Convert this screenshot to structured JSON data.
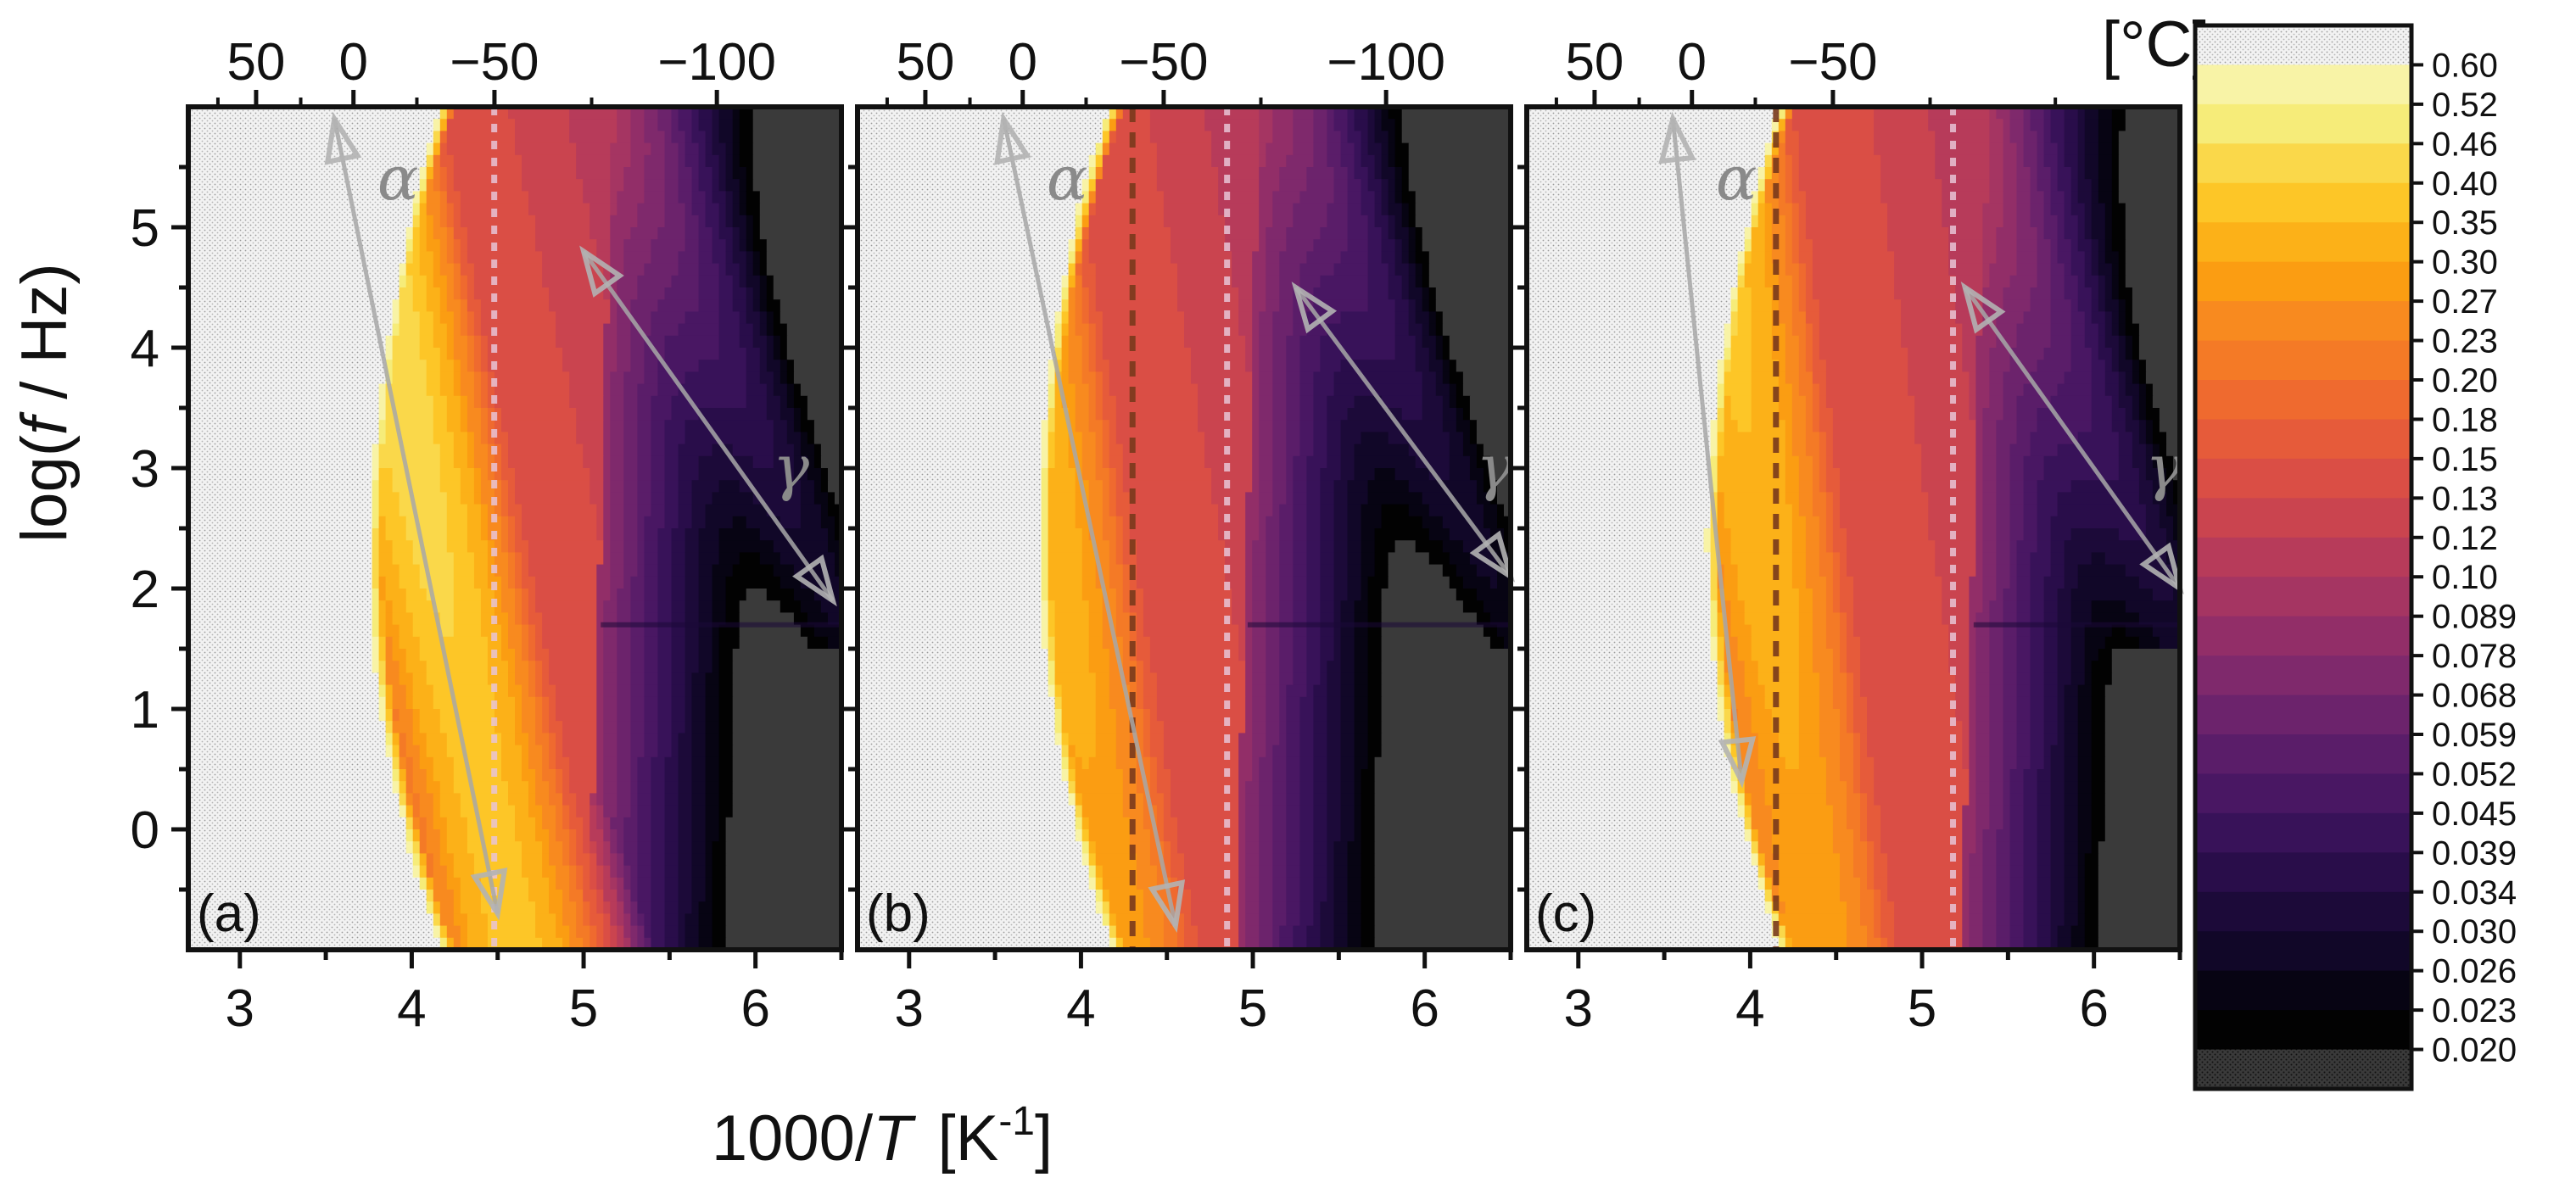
{
  "chart_data": {
    "type": "heatmap",
    "description_units": {
      "x": "1000/T [K^-1]",
      "y": "log(f / Hz)",
      "top_axis": "T [°C]"
    },
    "xlabel_main": "1000/",
    "xlabel_T": "T",
    "xlabel_unit": "[K",
    "xlabel_exp": "-1",
    "xlabel_close": "]",
    "ylabel_pre": "log(",
    "ylabel_f": "f",
    "ylabel_post": " / Hz)",
    "top_unit_label": "[°C]",
    "xlim": [
      2.7,
      6.5
    ],
    "ylim": [
      -1.0,
      6.0
    ],
    "x_ticks": [
      3,
      4,
      5,
      6
    ],
    "x_tick_labels": [
      "3",
      "4",
      "5",
      "6"
    ],
    "y_ticks": [
      0,
      1,
      2,
      3,
      4,
      5
    ],
    "y_tick_labels": [
      "0",
      "1",
      "2",
      "3",
      "4",
      "5"
    ],
    "panels": [
      {
        "label": "(a)",
        "top_ticks_celsius": [
          50,
          0,
          -50,
          -100
        ],
        "top_tick_labels": [
          "50",
          "0",
          "−50",
          "−100"
        ],
        "ridge_intercept": 4.46,
        "ridge_slope": -0.15,
        "edge_intercept": 3.95,
        "edge_slope": -0.175,
        "edge_curv": 0.035,
        "glass_x": 5.05,
        "alpha_arrow": {
          "x1": 3.55,
          "y1": 5.9,
          "x2": 4.5,
          "y2": -0.7
        },
        "gamma_arrow": {
          "x1": 5.0,
          "y1": 4.8,
          "x2": 6.45,
          "y2": 1.9
        },
        "vlines": [
          {
            "x": 4.48,
            "style": "white-dotted"
          }
        ],
        "alpha_label": "α",
        "gamma_label": "γ",
        "alpha_label_x": 3.8,
        "alpha_label_y": 5.4,
        "gamma_label_x": 6.1,
        "gamma_label_y": 3.0
      },
      {
        "label": "(b)",
        "top_ticks_celsius": [
          50,
          0,
          -50,
          -100
        ],
        "top_tick_labels": [
          "50",
          "0",
          "−50",
          "−100"
        ],
        "ridge_intercept": 4.1,
        "ridge_slope": -0.12,
        "edge_intercept": 3.95,
        "edge_slope": -0.175,
        "edge_curv": 0.035,
        "glass_x": 4.92,
        "alpha_arrow": {
          "x1": 3.55,
          "y1": 5.9,
          "x2": 4.55,
          "y2": -0.8
        },
        "gamma_arrow": {
          "x1": 5.25,
          "y1": 4.5,
          "x2": 6.5,
          "y2": 2.1
        },
        "vlines": [
          {
            "x": 4.3,
            "style": "dark-dashed"
          },
          {
            "x": 4.85,
            "style": "white-dotted"
          }
        ],
        "alpha_label": "α",
        "gamma_label": "γ",
        "alpha_label_x": 3.8,
        "alpha_label_y": 5.4,
        "gamma_label_x": 6.3,
        "gamma_label_y": 3.0
      },
      {
        "label": "(c)",
        "top_ticks_celsius": [
          50,
          0,
          -50
        ],
        "top_tick_labels": [
          "50",
          "0",
          "−50"
        ],
        "ridge_intercept": 4.3,
        "ridge_slope": -0.1,
        "edge_intercept": 3.95,
        "edge_slope": -0.175,
        "edge_curv": 0.035,
        "glass_x": 5.25,
        "alpha_arrow": {
          "x1": 3.55,
          "y1": 5.9,
          "x2": 3.95,
          "y2": 0.4
        },
        "gamma_arrow": {
          "x1": 5.25,
          "y1": 4.5,
          "x2": 6.5,
          "y2": 2.0
        },
        "vlines": [
          {
            "x": 4.15,
            "style": "dark-dashed"
          },
          {
            "x": 5.18,
            "style": "white-dotted"
          }
        ],
        "alpha_label": "α",
        "gamma_label": "γ",
        "alpha_label_x": 3.8,
        "alpha_label_y": 5.4,
        "gamma_label_x": 6.3,
        "gamma_label_y": 3.0
      }
    ],
    "colorbar": {
      "labels": [
        "0.60",
        "0.52",
        "0.46",
        "0.40",
        "0.35",
        "0.30",
        "0.27",
        "0.23",
        "0.20",
        "0.18",
        "0.15",
        "0.13",
        "0.12",
        "0.10",
        "0.089",
        "0.078",
        "0.068",
        "0.059",
        "0.052",
        "0.045",
        "0.039",
        "0.034",
        "0.030",
        "0.026",
        "0.023",
        "0.020"
      ],
      "colors": [
        "#f7f6e8",
        "#f8f3a6",
        "#f6ec79",
        "#fad84a",
        "#fdc627",
        "#fcb118",
        "#fb9d12",
        "#f88a1f",
        "#f47a26",
        "#ef6a2f",
        "#e65b3a",
        "#da4e45",
        "#ca444f",
        "#b73b5a",
        "#a53562",
        "#922e68",
        "#7f296c",
        "#6c236c",
        "#5a1d69",
        "#491763",
        "#381259",
        "#290d4a",
        "#1c0a39",
        "#110728",
        "#070413",
        "#020202",
        "#3a3a3a"
      ]
    }
  }
}
